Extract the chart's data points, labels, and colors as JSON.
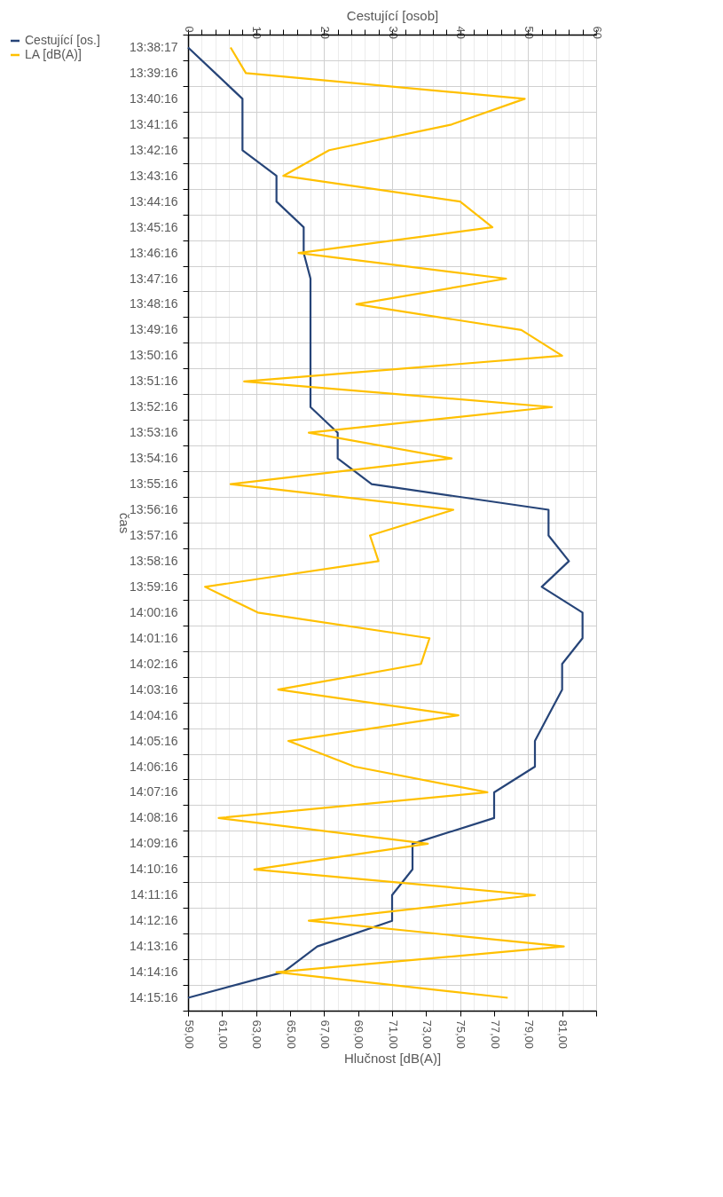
{
  "chart_data": {
    "type": "line",
    "orientation": "horizontal",
    "xlabel": "Hlučnost [dB(A)]",
    "x2label": "Cestující [osob]",
    "ylabel": "čas",
    "categories": [
      "13:38:17",
      "13:39:16",
      "13:40:16",
      "13:41:16",
      "13:42:16",
      "13:43:16",
      "13:44:16",
      "13:45:16",
      "13:46:16",
      "13:47:16",
      "13:48:16",
      "13:49:16",
      "13:50:16",
      "13:51:16",
      "13:52:16",
      "13:53:16",
      "13:54:16",
      "13:55:16",
      "13:56:16",
      "13:57:16",
      "13:58:16",
      "13:59:16",
      "14:00:16",
      "14:01:16",
      "14:02:16",
      "14:03:16",
      "14:04:16",
      "14:05:16",
      "14:06:16",
      "14:07:16",
      "14:08:16",
      "14:09:16",
      "14:10:16",
      "14:11:16",
      "14:12:16",
      "14:13:16",
      "14:14:16",
      "14:15:16"
    ],
    "xlim": [
      59,
      83
    ],
    "xticks": [
      {
        "value": 59,
        "label": "59,00"
      },
      {
        "value": 61,
        "label": "61,00"
      },
      {
        "value": 63,
        "label": "63,00"
      },
      {
        "value": 65,
        "label": "65,00"
      },
      {
        "value": 67,
        "label": "67,00"
      },
      {
        "value": 69,
        "label": "69,00"
      },
      {
        "value": 71,
        "label": "71,00"
      },
      {
        "value": 73,
        "label": "73,00"
      },
      {
        "value": 75,
        "label": "75,00"
      },
      {
        "value": 77,
        "label": "77,00"
      },
      {
        "value": 79,
        "label": "79,00"
      },
      {
        "value": 81,
        "label": "81,00"
      },
      {
        "value": 83,
        "label": null
      }
    ],
    "x2lim": [
      0,
      60
    ],
    "x2ticks": [
      0,
      {
        "value": 2,
        "label": null
      },
      {
        "value": 4,
        "label": null
      },
      {
        "value": 6,
        "label": null
      },
      {
        "value": 8,
        "label": null
      },
      10,
      {
        "value": 12,
        "label": null
      },
      {
        "value": 14,
        "label": null
      },
      {
        "value": 16,
        "label": null
      },
      {
        "value": 18,
        "label": null
      },
      20,
      {
        "value": 22,
        "label": null
      },
      {
        "value": 24,
        "label": null
      },
      {
        "value": 26,
        "label": null
      },
      {
        "value": 28,
        "label": null
      },
      30,
      {
        "value": 32,
        "label": null
      },
      {
        "value": 34,
        "label": null
      },
      {
        "value": 36,
        "label": null
      },
      {
        "value": 38,
        "label": null
      },
      40,
      {
        "value": 42,
        "label": null
      },
      {
        "value": 44,
        "label": null
      },
      {
        "value": 46,
        "label": null
      },
      {
        "value": 48,
        "label": null
      },
      50,
      {
        "value": 52,
        "label": null
      },
      {
        "value": 54,
        "label": null
      },
      {
        "value": 56,
        "label": null
      },
      {
        "value": 58,
        "label": null
      },
      60
    ],
    "series": [
      {
        "name": "Cestující [os.]",
        "color": "#264478",
        "axis": "x2",
        "values": [
          0,
          4,
          8,
          8,
          8,
          13,
          13,
          17,
          17,
          18,
          18,
          18,
          18,
          18,
          18,
          22,
          22,
          27,
          53,
          53,
          56,
          52,
          58,
          58,
          55,
          55,
          53,
          51,
          51,
          45,
          45,
          33,
          33,
          30,
          30,
          19,
          14,
          0
        ]
      },
      {
        "name": "LA [dB(A)]",
        "color": "#ffc000",
        "values": [
          61.5,
          62.4,
          78.8,
          74.5,
          67.3,
          64.6,
          75.0,
          76.9,
          65.5,
          77.7,
          68.9,
          78.6,
          81.0,
          62.3,
          80.4,
          66.1,
          74.5,
          61.5,
          74.6,
          69.7,
          70.2,
          60.0,
          63.1,
          73.2,
          72.7,
          64.3,
          74.9,
          64.9,
          68.8,
          76.6,
          60.8,
          73.1,
          62.9,
          79.4,
          66.1,
          81.1,
          64.2,
          77.8
        ]
      }
    ],
    "grid": true,
    "legend": "left",
    "marker": "none",
    "line_style": "solid"
  }
}
